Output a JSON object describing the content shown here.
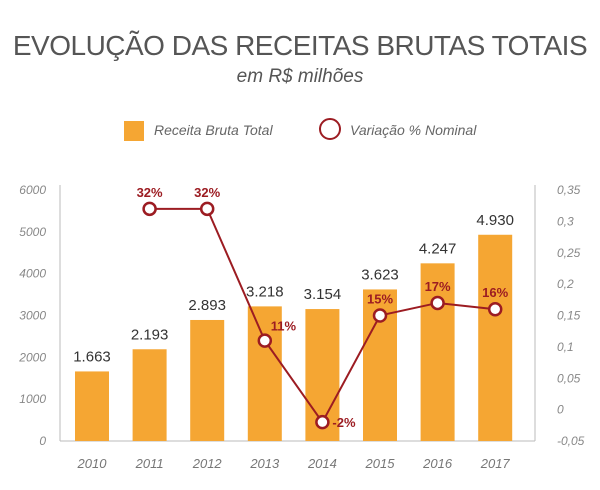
{
  "title": "EVOLUÇÃO DAS RECEITAS BRUTAS TOTAIS",
  "subtitle": "em R$ milhões",
  "legend": {
    "bar_label": "Receita Bruta Total",
    "line_label": "Variação % Nominal"
  },
  "chart_data": {
    "type": "bar",
    "categories": [
      "2010",
      "2011",
      "2012",
      "2013",
      "2014",
      "2015",
      "2016",
      "2017"
    ],
    "series": [
      {
        "name": "Receita Bruta Total",
        "type": "bar",
        "axis": "left",
        "values": [
          1663,
          2193,
          2893,
          3218,
          3154,
          3623,
          4247,
          4930
        ],
        "labels": [
          "1.663",
          "2.193",
          "2.893",
          "3.218",
          "3.154",
          "3.623",
          "4.247",
          "4.930"
        ],
        "color": "#f5a633"
      },
      {
        "name": "Variação % Nominal",
        "type": "line",
        "axis": "right",
        "values": [
          null,
          0.32,
          0.32,
          0.11,
          -0.02,
          0.15,
          0.17,
          0.16
        ],
        "labels": [
          "",
          "32%",
          "32%",
          "11%",
          "-2%",
          "15%",
          "17%",
          "16%"
        ],
        "color": "#9c1c22"
      }
    ],
    "y_left": {
      "range": [
        0,
        6000
      ],
      "ticks": [
        "0",
        "1000",
        "2000",
        "3000",
        "4000",
        "5000",
        "6000"
      ]
    },
    "y_right": {
      "range": [
        -0.05,
        0.35
      ],
      "ticks": [
        "-0,05",
        "0",
        "0,05",
        "0,1",
        "0,15",
        "0,2",
        "0,25",
        "0,3",
        "0,35"
      ]
    },
    "grid": false,
    "legend_position": "top"
  }
}
